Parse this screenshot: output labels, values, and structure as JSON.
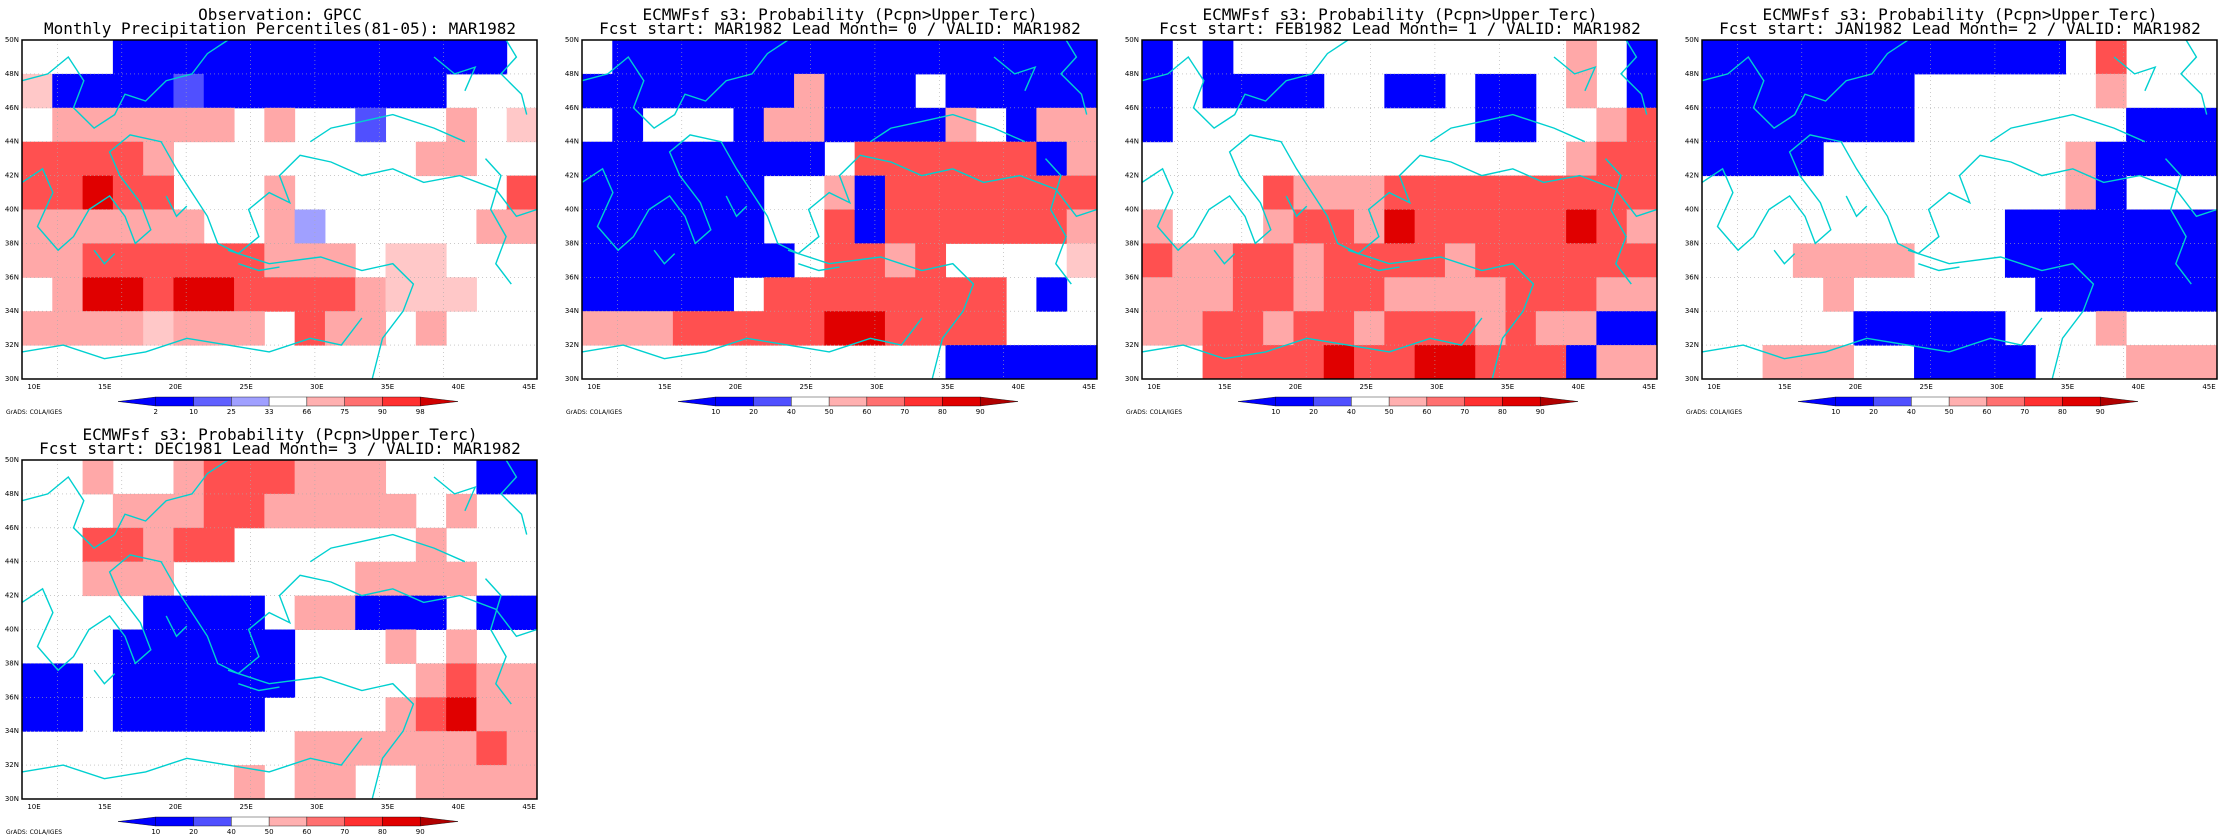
{
  "panels": [
    {
      "id": "obs",
      "title_line1": "Observation: GPCC",
      "title_line2": "Monthly Precipitation Percentiles(81-05): MAR1982",
      "colorbar_labels": [
        "2",
        "10",
        "25",
        "33",
        "66",
        "75",
        "90",
        "98"
      ],
      "colorbar_colors": [
        "#0000ff",
        "#6060ff",
        "#a0a0ff",
        "#ffffff",
        "#ffb0b0",
        "#ff7070",
        "#ff3030",
        "#d00000"
      ],
      "credit": "GrADS: COLA/IGES",
      "grid": [
        "000BBBBBBBBBBBBB0",
        "LBBBBbBBBBBBBB000",
        "0MMMMMM0M00b00M0L",
        "RRRRM00000000MM00",
        "RRDRR000M0000000R",
        "MMMMMM00Ml00000MM",
        "MMRRRRRRMMM0LL000",
        "0MDDRDDRRRRMLLL00",
        "MMMMLMMM0RMM0M000",
        "00000000000000000"
      ]
    },
    {
      "id": "lead0",
      "title_line1": "ECMWFsf s3: Probability (Pcpn>Upper Terc)",
      "title_line2": "Fcst start: MAR1982  Lead Month= 0 / VALID: MAR1982",
      "colorbar_labels": [
        "10",
        "20",
        "40",
        "50",
        "60",
        "70",
        "80",
        "90"
      ],
      "colorbar_colors": [
        "#0000ff",
        "#5050ff",
        "#ffffff",
        "#ffb0b0",
        "#ff7070",
        "#ff3030",
        "#e00000",
        "#b00000"
      ],
      "credit": "GrADS: COLA/IGES",
      "grid": [
        "0BBBBBBBBBBBBBBBB",
        "BBBBBBBMBBB0BBBBB",
        "0B000BMMBBBBM0BMM",
        "BBBBBBBB0RRRRRRBM",
        "BBBBBB00MBRRRRRRR",
        "BBBBBB00RBRRRRRRM",
        "BBBBBBB0RRMR0000L",
        "BBBBB0RRRRRRRR0B0",
        "MMMRRRRRDDRRRR000",
        "000000000000BBBBB"
      ]
    },
    {
      "id": "lead1",
      "title_line1": "ECMWFsf s3: Probability (Pcpn>Upper Terc)",
      "title_line2": "Fcst start: FEB1982  Lead Month= 1 / VALID: MAR1982",
      "colorbar_labels": [
        "10",
        "20",
        "40",
        "50",
        "60",
        "70",
        "80",
        "90"
      ],
      "colorbar_colors": [
        "#0000ff",
        "#5050ff",
        "#ffffff",
        "#ffb0b0",
        "#ff7070",
        "#ff3030",
        "#e00000",
        "#b00000"
      ],
      "credit": "GrADS: COLA/IGES",
      "grid": [
        "B0B00000000000M0B",
        "B0BBBB00BB0BB0M0B",
        "B0000000000BB00MR",
        "00000000000000MRR",
        "0000RMMMRRRRRRRRR",
        "M000MRRMDRRRRRDRM",
        "RMMRRMRRRRMRRRRRR",
        "MMMRRMRRMMMMRRRMM",
        "MMRRMRRMRRRMRMMBB",
        "00RRRRDRRDDRRRBMM"
      ]
    },
    {
      "id": "lead2",
      "title_line1": "ECMWFsf s3: Probability (Pcpn>Upper Terc)",
      "title_line2": "Fcst start: JAN1982  Lead Month= 2 / VALID: MAR1982",
      "colorbar_labels": [
        "10",
        "20",
        "40",
        "50",
        "60",
        "70",
        "80",
        "90"
      ],
      "colorbar_colors": [
        "#0000ff",
        "#5050ff",
        "#ffffff",
        "#ffb0b0",
        "#ff7070",
        "#ff3030",
        "#e00000",
        "#b00000"
      ],
      "credit": "GrADS: COLA/IGES",
      "grid": [
        "BBBBBBBBBBBB0R000",
        "BBBBBBB000000M000",
        "BBBBBBB0000000BBB",
        "BBBB00000000MBBBB",
        "000000000000MB000",
        "0000000000BBBBBBB",
        "000MMMM000BBBBBBB",
        "0000M000000BBBBBB",
        "00000BBBBB000M000",
        "00MMM00BBBB000MMM"
      ]
    },
    {
      "id": "lead3",
      "title_line1": "ECMWFsf s3: Probability (Pcpn>Upper Terc)",
      "title_line2": "Fcst start: DEC1981  Lead Month= 3 / VALID: MAR1982",
      "colorbar_labels": [
        "10",
        "20",
        "40",
        "50",
        "60",
        "70",
        "80",
        "90"
      ],
      "colorbar_colors": [
        "#0000ff",
        "#5050ff",
        "#ffffff",
        "#ffb0b0",
        "#ff7070",
        "#ff3030",
        "#e00000",
        "#b00000"
      ],
      "credit": "GrADS: COLA/IGES",
      "grid": [
        "00M00MRRRMMM000BB",
        "000MMMRRMMMMM0M00",
        "00RRMRR000000M000",
        "00MMM000000MMMM00",
        "0000BBBB0MMBBB0BB",
        "000BBBBBB000M0M00",
        "BB0BBBBBB0000MRMM",
        "BB0BBBBB0000MRDMM",
        "000000000MMMMMMRM",
        "0000000M0MM00MMMM"
      ]
    }
  ],
  "map": {
    "lat_labels": [
      "30N",
      "32N",
      "34N",
      "36N",
      "38N",
      "40N",
      "42N",
      "44N",
      "46N",
      "48N",
      "50N"
    ],
    "lon_labels": [
      "10E",
      "15E",
      "20E",
      "25E",
      "30E",
      "35E",
      "40E",
      "45E"
    ],
    "palette": {
      "B": "#0000ff",
      "b": "#5050ff",
      "l": "#a0a0ff",
      "M": "#ffa8a8",
      "L": "#ffc8c8",
      "R": "#ff5050",
      "D": "#e00000",
      "0": "#ffffff"
    },
    "coast_color": "#00d0d0"
  }
}
